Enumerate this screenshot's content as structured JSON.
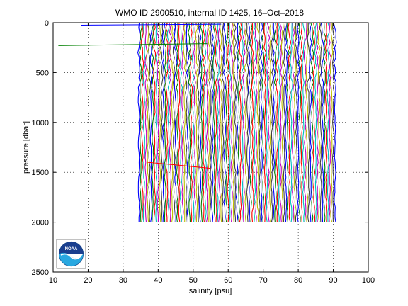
{
  "chart_data": {
    "type": "line",
    "title": "WMO ID 2900510, internal ID 1425, 16–Oct–2018",
    "xlabel": "salinity [psu]",
    "ylabel": "pressure [dbar]",
    "xlim": [
      10,
      100
    ],
    "ylim": [
      0,
      2500
    ],
    "y_reversed": true,
    "grid": true,
    "x_ticks": [
      "10",
      "20",
      "30",
      "40",
      "50",
      "60",
      "70",
      "80",
      "90",
      "100"
    ],
    "y_ticks": [
      "0",
      "500",
      "1000",
      "1500",
      "2000",
      "2500"
    ],
    "series_colors": [
      "#0000ff",
      "#008000",
      "#ff0000",
      "#00bfbf",
      "#bf00bf",
      "#bfbf00",
      "#404040"
    ],
    "profile_band": {
      "x_start": 34.5,
      "x_end": 90.5,
      "p_top": 0,
      "p_bottom": 2000,
      "spacing": 0.5
    },
    "outlier_segments": [
      {
        "color": "#0000ff",
        "x": [
          18,
          58
        ],
        "y": [
          25,
          15
        ]
      },
      {
        "color": "#008000",
        "x": [
          11.5,
          54
        ],
        "y": [
          230,
          210
        ]
      },
      {
        "color": "#ff0000",
        "x": [
          37,
          55
        ],
        "y": [
          1400,
          1460
        ]
      }
    ],
    "logo": {
      "name": "noaa-logo",
      "text": "NOAA"
    }
  }
}
